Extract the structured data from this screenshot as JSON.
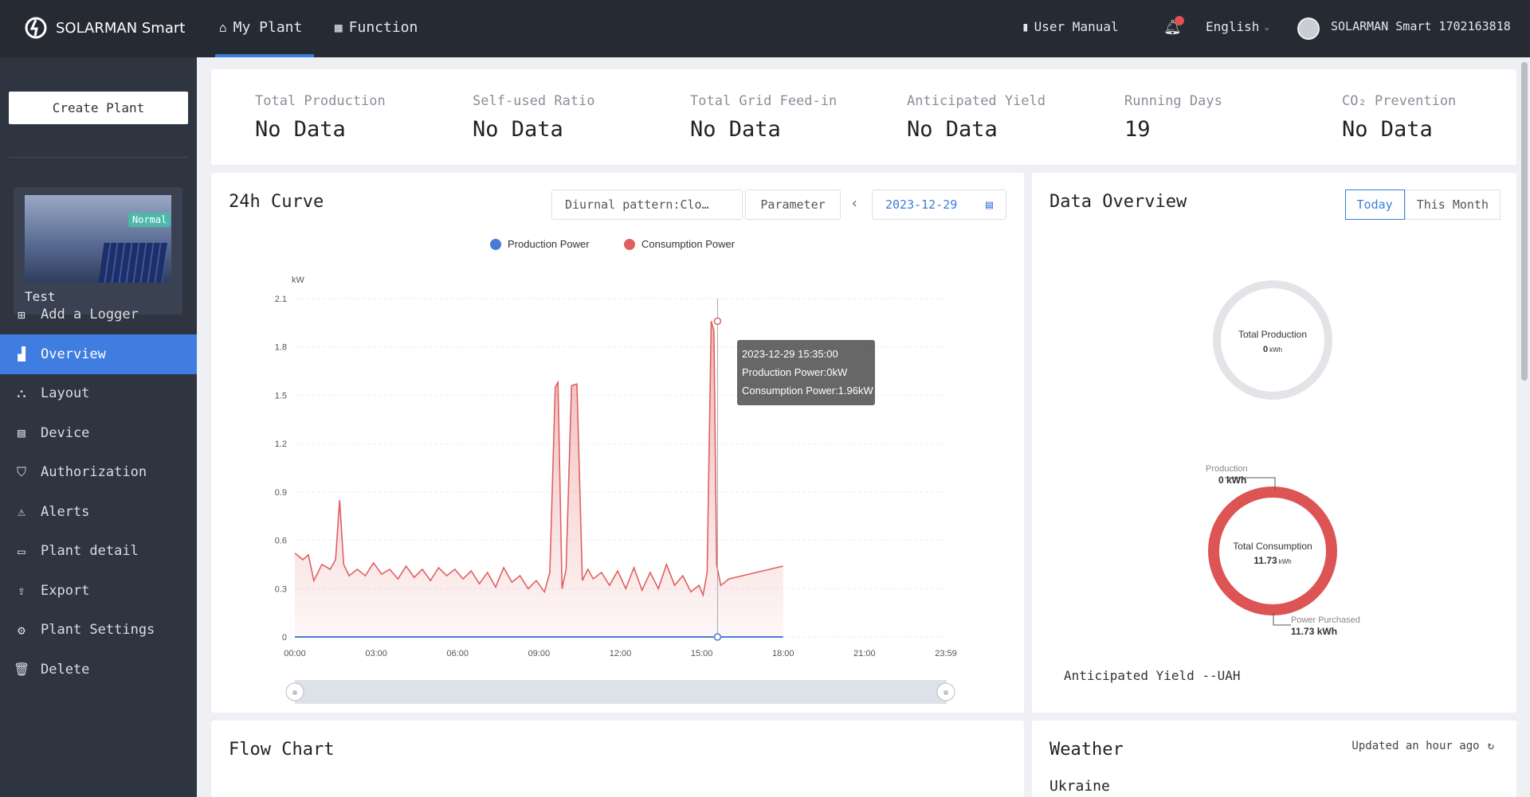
{
  "app": {
    "name": "SOLARMAN Smart"
  },
  "nav": {
    "my_plant": "My Plant",
    "function": "Function"
  },
  "header": {
    "user_manual": "User Manual",
    "language": "English",
    "user": "SOLARMAN Smart 1702163818"
  },
  "sidebar": {
    "create_plant": "Create Plant",
    "plant": {
      "name": "Test",
      "status": "Normal"
    },
    "items": [
      {
        "label": "Add a Logger",
        "icon": "plus-square-icon",
        "active": false
      },
      {
        "label": "Overview",
        "icon": "bar-chart-icon",
        "active": true
      },
      {
        "label": "Layout",
        "icon": "layout-icon",
        "active": false
      },
      {
        "label": "Device",
        "icon": "device-icon",
        "active": false
      },
      {
        "label": "Authorization",
        "icon": "shield-icon",
        "active": false
      },
      {
        "label": "Alerts",
        "icon": "alarm-icon",
        "active": false
      },
      {
        "label": "Plant detail",
        "icon": "folder-icon",
        "active": false
      },
      {
        "label": "Export",
        "icon": "export-icon",
        "active": false
      },
      {
        "label": "Plant Settings",
        "icon": "gear-icon",
        "active": false
      },
      {
        "label": "Delete",
        "icon": "trash-icon",
        "active": false
      }
    ]
  },
  "stats": [
    {
      "label": "Total Production",
      "value": "No Data"
    },
    {
      "label": "Self-used Ratio",
      "value": "No Data"
    },
    {
      "label": "Total Grid Feed-in",
      "value": "No Data"
    },
    {
      "label": "Anticipated Yield",
      "value": "No Data"
    },
    {
      "label": "Running Days",
      "value": "19"
    },
    {
      "label": "CO₂ Prevention",
      "value": "No Data"
    }
  ],
  "curve": {
    "title": "24h Curve",
    "pattern": "Diurnal pattern:Clo…",
    "parameter": "Parameter",
    "date": "2023-12-29",
    "tooltip": {
      "time": "2023-12-29 15:35:00",
      "production": "Production Power:0kW",
      "consumption": "Consumption Power:1.96kW"
    }
  },
  "chart_data": {
    "type": "line",
    "ylabel": "kW",
    "ylim": [
      0,
      2.1
    ],
    "yticks": [
      "0",
      "0.3",
      "0.6",
      "0.9",
      "1.2",
      "1.5",
      "1.8",
      "2.1"
    ],
    "xticks": [
      "00:00",
      "03:00",
      "06:00",
      "09:00",
      "12:00",
      "15:00",
      "18:00",
      "21:00",
      "23:59"
    ],
    "xlim_hours": [
      0,
      24
    ],
    "grid": true,
    "legend_position": "top",
    "series": [
      {
        "name": "Production Power",
        "color": "#4a7ad8",
        "x_hours": [
          0,
          18
        ],
        "y": [
          0,
          0
        ]
      },
      {
        "name": "Consumption Power",
        "color": "#e06060",
        "x_hours": [
          0,
          0.3,
          0.5,
          0.7,
          1.0,
          1.3,
          1.5,
          1.65,
          1.8,
          2.0,
          2.3,
          2.6,
          2.9,
          3.2,
          3.5,
          3.8,
          4.1,
          4.4,
          4.7,
          5.0,
          5.3,
          5.6,
          5.9,
          6.2,
          6.5,
          6.8,
          7.1,
          7.4,
          7.7,
          8.0,
          8.3,
          8.6,
          8.9,
          9.2,
          9.4,
          9.6,
          9.7,
          9.85,
          10.0,
          10.2,
          10.4,
          10.6,
          10.8,
          11.0,
          11.3,
          11.6,
          11.9,
          12.2,
          12.5,
          12.8,
          13.1,
          13.4,
          13.7,
          14.0,
          14.3,
          14.6,
          14.9,
          15.05,
          15.2,
          15.35,
          15.45,
          15.55,
          15.7,
          16.0,
          16.5,
          17.0,
          17.5,
          18.0
        ],
        "y": [
          0.52,
          0.48,
          0.51,
          0.35,
          0.45,
          0.42,
          0.48,
          0.85,
          0.45,
          0.38,
          0.42,
          0.38,
          0.46,
          0.39,
          0.42,
          0.36,
          0.44,
          0.37,
          0.42,
          0.35,
          0.43,
          0.38,
          0.42,
          0.36,
          0.41,
          0.33,
          0.4,
          0.31,
          0.43,
          0.34,
          0.38,
          0.3,
          0.35,
          0.28,
          0.4,
          1.55,
          1.58,
          0.3,
          0.42,
          1.56,
          1.57,
          0.35,
          0.42,
          0.36,
          0.4,
          0.32,
          0.41,
          0.3,
          0.43,
          0.29,
          0.4,
          0.3,
          0.45,
          0.32,
          0.38,
          0.28,
          0.32,
          0.26,
          0.4,
          1.96,
          1.9,
          0.45,
          0.32,
          0.36,
          0.38,
          0.4,
          0.42,
          0.44
        ]
      }
    ]
  },
  "overview": {
    "title": "Data Overview",
    "tab_today": "Today",
    "tab_month": "This Month",
    "total_production_label": "Total Production",
    "total_production_value": "0",
    "total_production_unit": "kWh",
    "production_label": "Production",
    "production_value": "0 kWh",
    "total_consumption_label": "Total Consumption",
    "total_consumption_value": "11.73",
    "total_consumption_unit": "kWh",
    "power_purchased_label": "Power Purchased",
    "power_purchased_value": "11.73 kWh",
    "anticipated_yield": "Anticipated Yield --UAH"
  },
  "flow": {
    "title": "Flow Chart"
  },
  "weather": {
    "title": "Weather",
    "updated": "Updated an hour ago",
    "location": "Ukraine"
  },
  "colors": {
    "accent": "#3b7ddd",
    "consumption": "#e06060",
    "production": "#4a7ad8",
    "badge": "#4db8a9",
    "topbar": "#262a33",
    "sidebar": "#2e3440"
  }
}
